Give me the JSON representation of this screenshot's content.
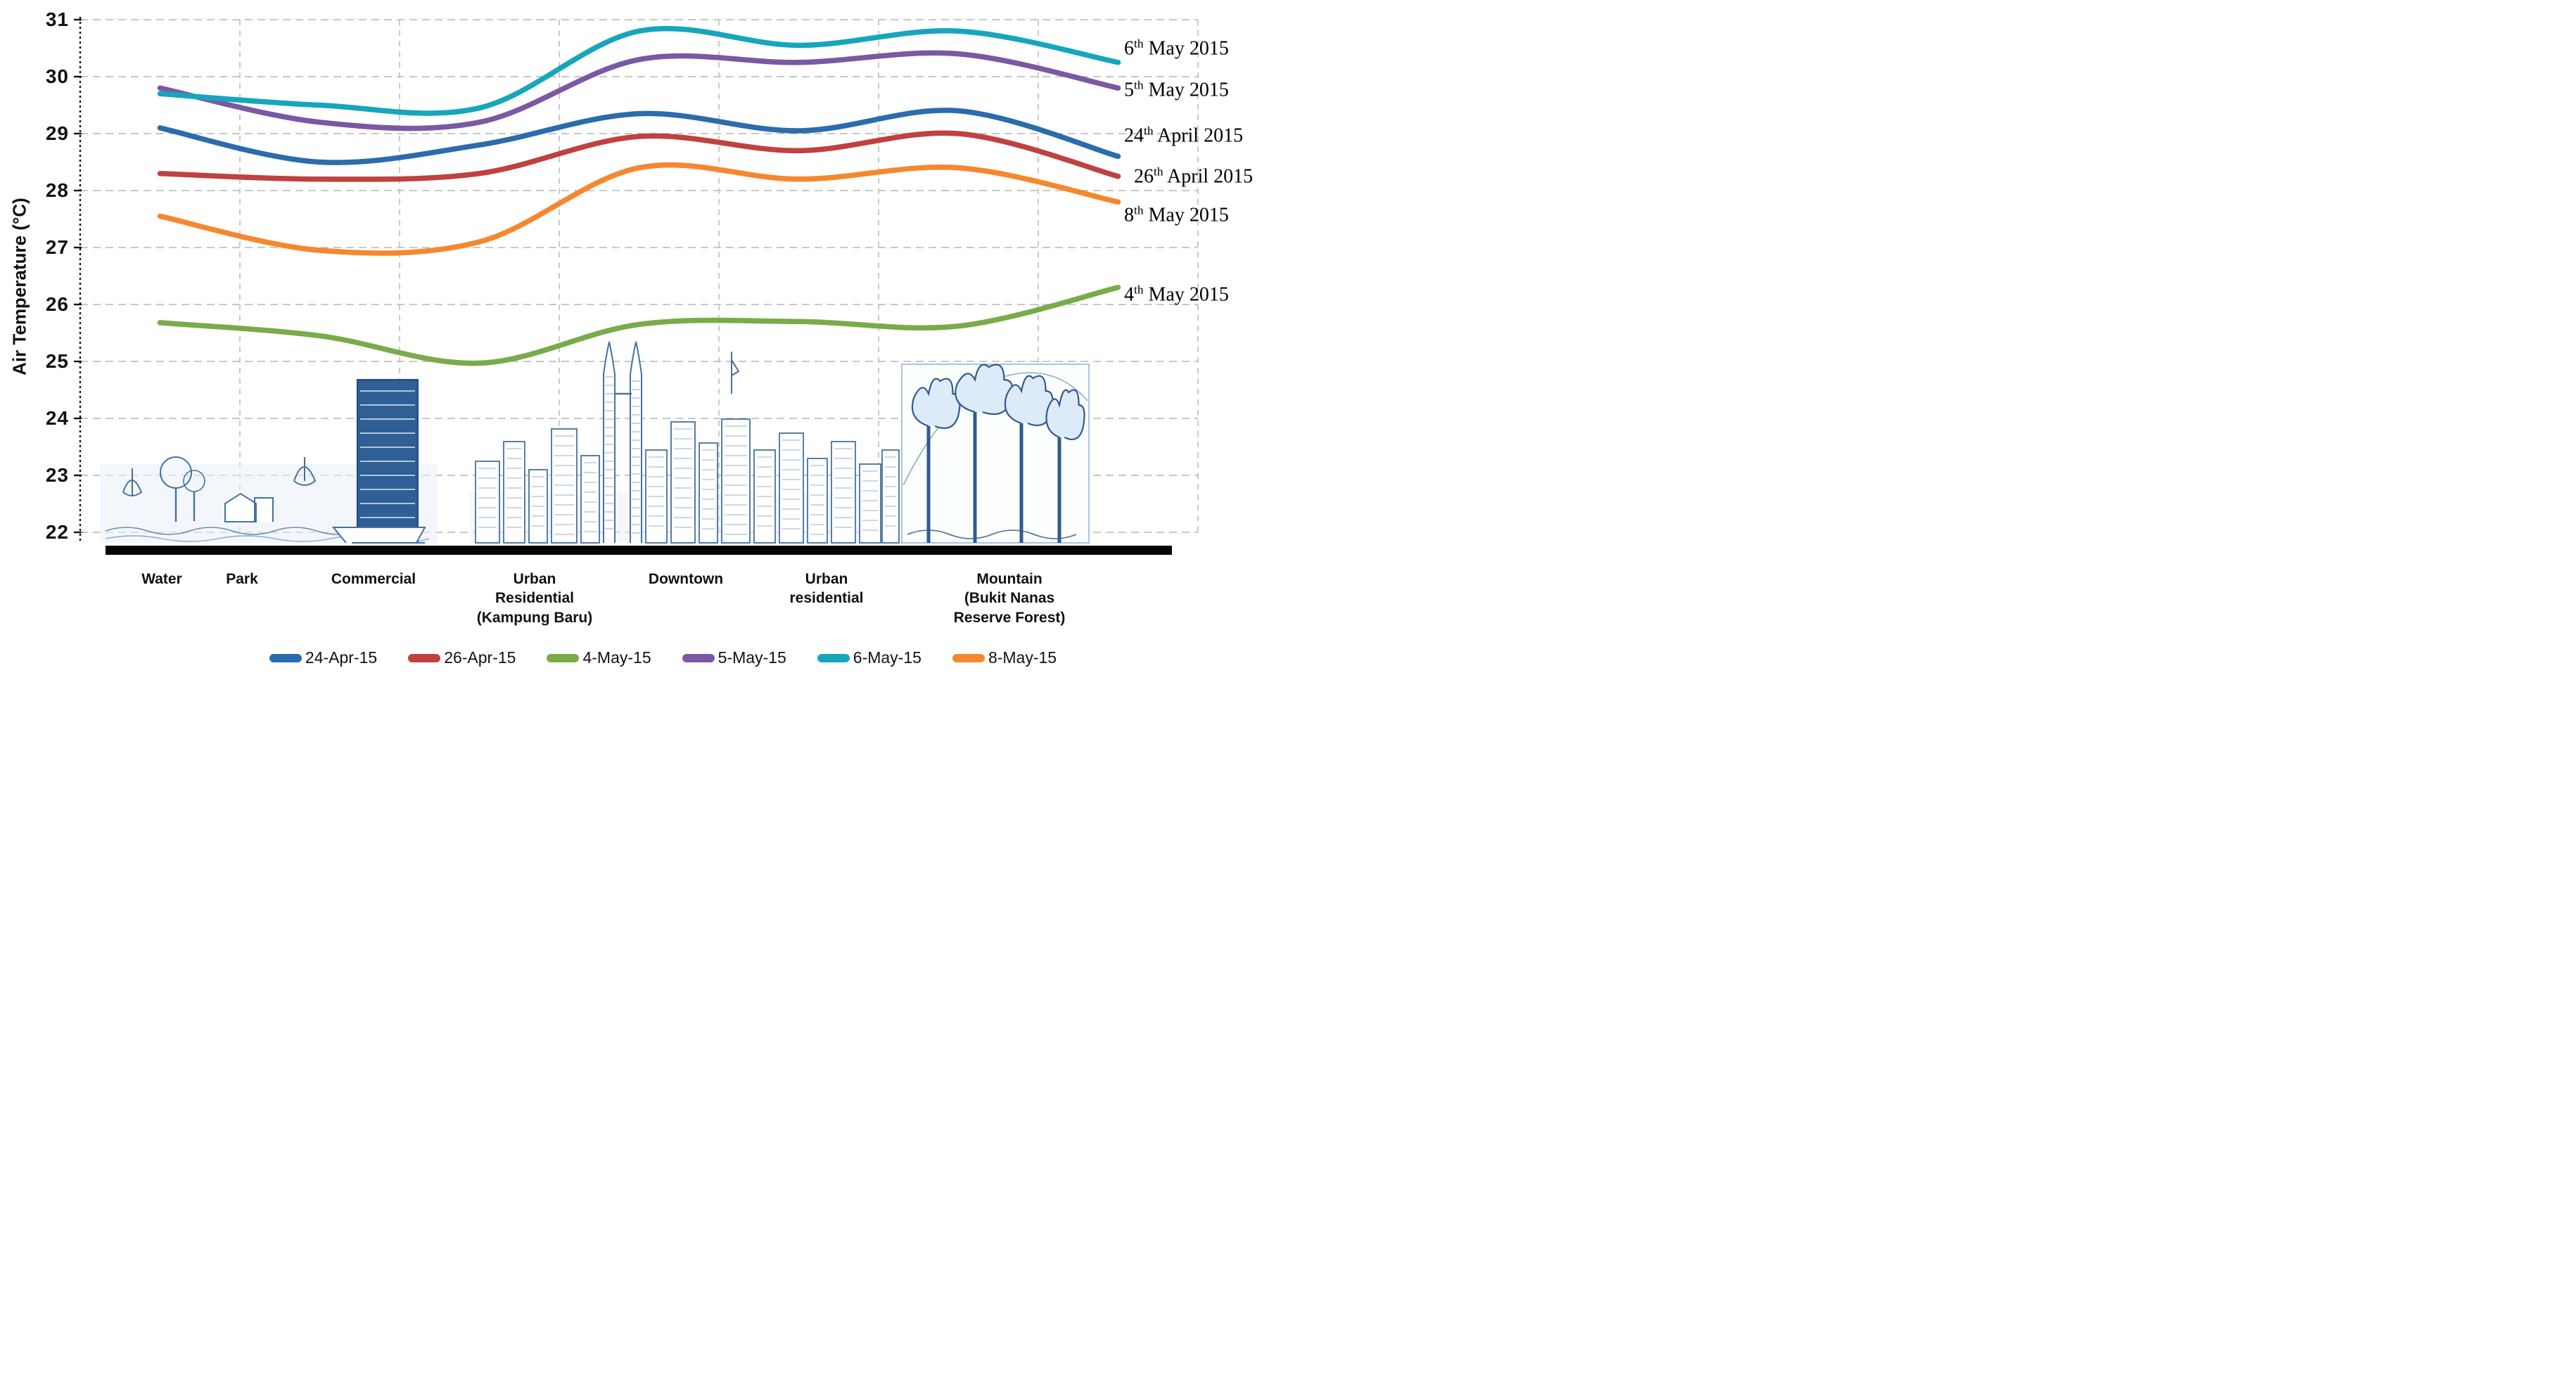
{
  "chart_data": {
    "type": "line",
    "title": "",
    "xlabel": "",
    "ylabel": "Air Temperature (°C)",
    "ylim": [
      22,
      31
    ],
    "yticks": [
      31,
      30,
      29,
      28,
      27,
      26,
      25,
      24,
      23,
      22
    ],
    "grid": "dashed light-gray horizontal lines at each degree and dashed vertical lines at category boundaries; dotted black y-axis; thick black x-axis bar",
    "legend_position": "bottom",
    "line_style": "smoothed (spline), thick, no markers",
    "categories": [
      "Water",
      "Park",
      "Commercial",
      "Urban Residential (Kampung Baru)",
      "Downtown",
      "Urban residential",
      "Mountain (Bukit Nanas Reserve Forest)"
    ],
    "categories_multiline": [
      [
        "Water"
      ],
      [
        "Park"
      ],
      [
        "Commercial"
      ],
      [
        "Urban",
        "Residential",
        "(Kampung Baru)"
      ],
      [
        "Downtown"
      ],
      [
        "Urban",
        "residential"
      ],
      [
        "Mountain",
        "(Bukit Nanas",
        "Reserve Forest)"
      ]
    ],
    "series": [
      {
        "name": "24-Apr-15",
        "color": "#2b6cad",
        "right_annotation": "24th April 2015",
        "values": [
          29.1,
          28.5,
          28.8,
          29.35,
          29.05,
          29.4,
          28.6
        ]
      },
      {
        "name": "26-Apr-15",
        "color": "#c0413f",
        "right_annotation": "26th April 2015",
        "values": [
          28.3,
          28.2,
          28.3,
          28.95,
          28.7,
          29.0,
          28.25
        ]
      },
      {
        "name": "4-May-15",
        "color": "#7aab4a",
        "right_annotation": "4th May 2015",
        "values": [
          25.68,
          25.45,
          24.97,
          25.65,
          25.7,
          25.62,
          26.3
        ]
      },
      {
        "name": "5-May-15",
        "color": "#7a58a3",
        "right_annotation": "5th May 2015",
        "values": [
          29.8,
          29.2,
          29.2,
          30.3,
          30.25,
          30.4,
          29.8
        ]
      },
      {
        "name": "6-May-15",
        "color": "#16a6bc",
        "right_annotation": "6th May 2015",
        "values": [
          29.7,
          29.5,
          29.45,
          30.8,
          30.55,
          30.8,
          30.25
        ]
      },
      {
        "name": "8-May-15",
        "color": "#f5882f",
        "right_annotation": "8th May 2015",
        "values": [
          27.55,
          26.95,
          27.1,
          28.4,
          28.2,
          28.4,
          27.8
        ]
      }
    ],
    "right_annotations": [
      {
        "day": "6",
        "ord": "th",
        "rest": " May 2015"
      },
      {
        "day": "5",
        "ord": "th",
        "rest": " May 2015"
      },
      {
        "day": "24",
        "ord": "th",
        "rest": " April 2015"
      },
      {
        "day": "26",
        "ord": "th",
        "rest": " April 2015"
      },
      {
        "day": "8",
        "ord": "th",
        "rest": " May 2015"
      },
      {
        "day": "4",
        "ord": "th",
        "rest": " May 2015"
      }
    ],
    "legend": [
      "24-Apr-15",
      "26-Apr-15",
      "4-May-15",
      "5-May-15",
      "6-May-15",
      "8-May-15"
    ]
  }
}
